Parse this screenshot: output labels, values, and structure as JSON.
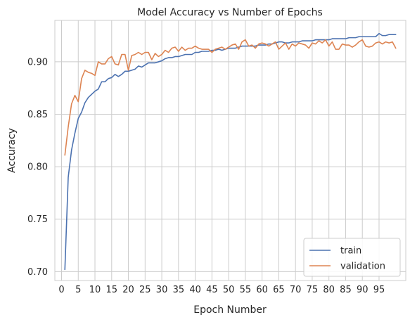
{
  "chart_data": {
    "type": "line",
    "title": "Model Accuracy vs Number of Epochs",
    "xlabel": "Epoch Number",
    "ylabel": "Accuracy",
    "xlim": [
      -2,
      103
    ],
    "ylim": [
      0.6915,
      0.9395
    ],
    "xticks": [
      0,
      5,
      10,
      15,
      20,
      25,
      30,
      35,
      40,
      45,
      50,
      55,
      60,
      65,
      70,
      75,
      80,
      85,
      90,
      95
    ],
    "yticks": [
      0.7,
      0.75,
      0.8,
      0.85,
      0.9
    ],
    "ytick_labels": [
      "0.70",
      "0.75",
      "0.80",
      "0.85",
      "0.90"
    ],
    "grid": true,
    "legend_position": "bottom-right",
    "x_start": 1,
    "series": [
      {
        "name": "train",
        "color": "#4c72b0",
        "values": [
          0.702,
          0.79,
          0.816,
          0.832,
          0.846,
          0.852,
          0.861,
          0.866,
          0.869,
          0.872,
          0.874,
          0.881,
          0.881,
          0.884,
          0.885,
          0.888,
          0.886,
          0.888,
          0.891,
          0.891,
          0.892,
          0.893,
          0.896,
          0.895,
          0.897,
          0.899,
          0.899,
          0.899,
          0.9,
          0.901,
          0.903,
          0.904,
          0.904,
          0.905,
          0.905,
          0.906,
          0.907,
          0.907,
          0.907,
          0.909,
          0.909,
          0.91,
          0.91,
          0.91,
          0.911,
          0.911,
          0.912,
          0.911,
          0.912,
          0.913,
          0.913,
          0.913,
          0.914,
          0.915,
          0.915,
          0.915,
          0.915,
          0.915,
          0.916,
          0.916,
          0.916,
          0.917,
          0.917,
          0.918,
          0.919,
          0.919,
          0.918,
          0.918,
          0.919,
          0.919,
          0.919,
          0.92,
          0.92,
          0.92,
          0.92,
          0.921,
          0.921,
          0.921,
          0.921,
          0.921,
          0.922,
          0.922,
          0.922,
          0.922,
          0.922,
          0.923,
          0.923,
          0.923,
          0.924,
          0.924,
          0.924,
          0.924,
          0.924,
          0.924,
          0.927,
          0.925,
          0.925,
          0.926,
          0.926,
          0.926
        ]
      },
      {
        "name": "validation",
        "color": "#dd8452",
        "values": [
          0.811,
          0.838,
          0.86,
          0.868,
          0.862,
          0.884,
          0.892,
          0.89,
          0.889,
          0.887,
          0.9,
          0.898,
          0.898,
          0.903,
          0.905,
          0.898,
          0.897,
          0.907,
          0.907,
          0.892,
          0.906,
          0.907,
          0.909,
          0.907,
          0.909,
          0.909,
          0.902,
          0.908,
          0.905,
          0.907,
          0.911,
          0.909,
          0.913,
          0.914,
          0.91,
          0.914,
          0.911,
          0.913,
          0.913,
          0.915,
          0.913,
          0.912,
          0.912,
          0.912,
          0.909,
          0.912,
          0.913,
          0.914,
          0.912,
          0.914,
          0.916,
          0.917,
          0.912,
          0.919,
          0.921,
          0.915,
          0.916,
          0.913,
          0.917,
          0.918,
          0.917,
          0.915,
          0.917,
          0.919,
          0.912,
          0.915,
          0.918,
          0.912,
          0.917,
          0.915,
          0.918,
          0.917,
          0.916,
          0.913,
          0.918,
          0.917,
          0.92,
          0.918,
          0.921,
          0.915,
          0.919,
          0.912,
          0.912,
          0.917,
          0.916,
          0.916,
          0.914,
          0.916,
          0.919,
          0.921,
          0.915,
          0.914,
          0.915,
          0.918,
          0.919,
          0.917,
          0.919,
          0.918,
          0.919,
          0.913
        ]
      }
    ]
  }
}
